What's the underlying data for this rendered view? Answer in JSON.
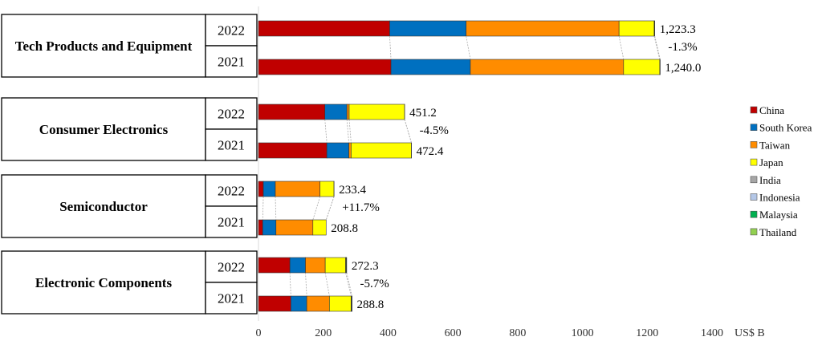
{
  "chart_data": {
    "type": "bar",
    "orientation": "horizontal",
    "stacked": true,
    "xlabel": "US$ B",
    "xlim": [
      0,
      1400
    ],
    "xticks": [
      0,
      200,
      400,
      600,
      800,
      1000,
      1200,
      1400
    ],
    "legend_position": "right",
    "series_names": [
      "China",
      "South Korea",
      "Taiwan",
      "Japan",
      "India",
      "Indonesia",
      "Malaysia",
      "Thailand"
    ],
    "colors": [
      "#c00000",
      "#0070c0",
      "#ff8c00",
      "#ffff00",
      "#a6a6a6",
      "#b4c7e7",
      "#00b050",
      "#92d050"
    ],
    "groups": [
      {
        "category": "Tech Products and Equipment",
        "change": "-1.3%",
        "bars": [
          {
            "year": "2022",
            "total_label": "1,223.3",
            "values": [
              405,
              236,
              472,
              108.5,
              0.5,
              0.3,
              1.0,
              0.0
            ]
          },
          {
            "year": "2021",
            "total_label": "1,240.0",
            "values": [
              409,
              245,
              473,
              111.5,
              0.5,
              0.0,
              1.0,
              0.0
            ]
          }
        ]
      },
      {
        "category": "Consumer Electronics",
        "change": "-4.5%",
        "bars": [
          {
            "year": "2022",
            "total_label": "451.2",
            "values": [
              205,
              68,
              7,
              171,
              0.2,
              0,
              0,
              0
            ]
          },
          {
            "year": "2021",
            "total_label": "472.4",
            "values": [
              211,
              68,
              7,
              186,
              0.4,
              0,
              0,
              0
            ]
          }
        ]
      },
      {
        "category": "Semiconductor",
        "change": "+11.7%",
        "bars": [
          {
            "year": "2022",
            "total_label": "233.4",
            "values": [
              15,
              37,
              138,
              43,
              0.4,
              0,
              0,
              0
            ]
          },
          {
            "year": "2021",
            "total_label": "208.8",
            "values": [
              13,
              41,
              114,
              40.8,
              0,
              0,
              0,
              0
            ]
          }
        ]
      },
      {
        "category": "Electronic Components",
        "change": "-5.7%",
        "bars": [
          {
            "year": "2022",
            "total_label": "272.3",
            "values": [
              97,
              48,
              61,
              63,
              0.8,
              0.5,
              1.5,
              0.5
            ]
          },
          {
            "year": "2021",
            "total_label": "288.8",
            "values": [
              100,
              49,
              70,
              67,
              0.8,
              0.5,
              1.0,
              0.5
            ]
          }
        ]
      }
    ]
  }
}
